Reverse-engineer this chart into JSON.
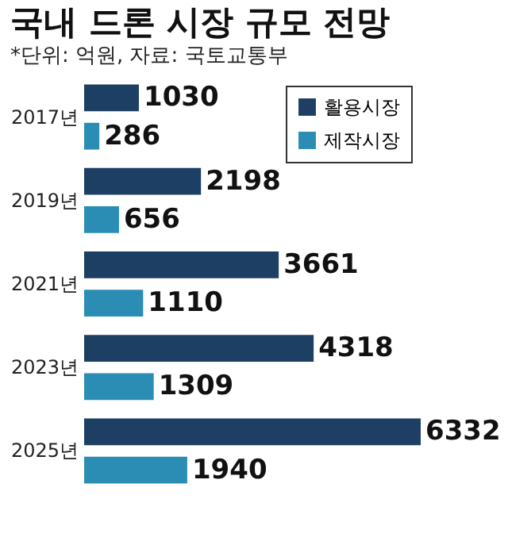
{
  "chart_data": {
    "type": "bar",
    "orientation": "horizontal",
    "title": "국내 드론 시장 규모 전망",
    "subtitle": "*단위: 억원, 자료: 국토교통부",
    "categories": [
      "2017년",
      "2019년",
      "2021년",
      "2023년",
      "2025년"
    ],
    "series": [
      {
        "name": "활용시장",
        "color": "#1d3f63",
        "values": [
          1030,
          2198,
          3661,
          4318,
          6332
        ]
      },
      {
        "name": "제작시장",
        "color": "#2b8db3",
        "values": [
          286,
          656,
          1110,
          1309,
          1940
        ]
      }
    ],
    "data_labels": true,
    "legend": "top right"
  }
}
